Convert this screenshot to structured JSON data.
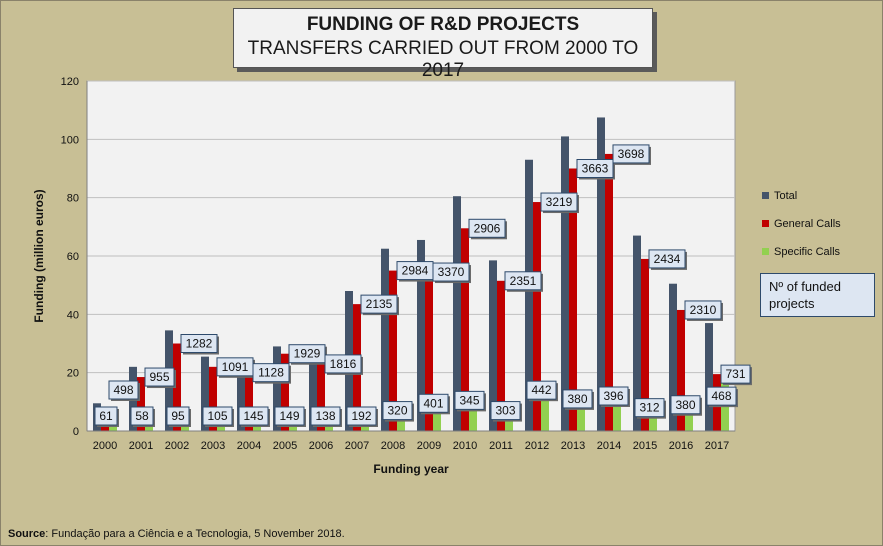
{
  "title": {
    "line1": "FUNDING OF R&D PROJECTS",
    "line2": "TRANSFERS CARRIED OUT FROM 2000 TO 2017"
  },
  "note_box": "Nº of funded projects",
  "source": {
    "label": "Source",
    "text": ": Fundação para a Ciência e a Tecnologia, 5 November 2018."
  },
  "colors": {
    "total": "#44546a",
    "general": "#c00000",
    "specific": "#92d050",
    "plot_bg": "#f2f2f2",
    "page_bg": "#c8bf95"
  },
  "chart_data": {
    "type": "bar",
    "xlabel": "Funding year",
    "ylabel": "Funding (million euros)",
    "ylim": [
      0,
      120
    ],
    "yticks": [
      0,
      20,
      40,
      60,
      80,
      100,
      120
    ],
    "categories": [
      "2000",
      "2001",
      "2002",
      "2003",
      "2004",
      "2005",
      "2006",
      "2007",
      "2008",
      "2009",
      "2010",
      "2011",
      "2012",
      "2013",
      "2014",
      "2015",
      "2016",
      "2017"
    ],
    "series": [
      {
        "name": "Total",
        "values": [
          9.5,
          22,
          34.5,
          25.5,
          22,
          29,
          27,
          48,
          62.5,
          65.5,
          80.5,
          58.5,
          93,
          101,
          107.5,
          67,
          50.5,
          37
        ]
      },
      {
        "name": "General Calls",
        "values": [
          7,
          18.5,
          30,
          22,
          20,
          26.5,
          23,
          43.5,
          55,
          54.5,
          69.5,
          51.5,
          78.5,
          90,
          95,
          59,
          41.5,
          19.5
        ]
      },
      {
        "name": "Specific Calls",
        "values": [
          2.5,
          3,
          4,
          3.5,
          2.5,
          2.5,
          3,
          4,
          7,
          9.5,
          10.5,
          7,
          14,
          11,
          12,
          8,
          9,
          17
        ]
      }
    ],
    "general_projects": [
      498,
      955,
      1282,
      1091,
      1128,
      1929,
      1816,
      2135,
      2984,
      3370,
      2906,
      2351,
      3219,
      3663,
      3698,
      2434,
      2310,
      731
    ],
    "specific_projects": [
      61,
      58,
      95,
      105,
      145,
      149,
      138,
      192,
      320,
      401,
      345,
      303,
      442,
      380,
      396,
      312,
      380,
      468
    ],
    "legend": [
      "Total",
      "General Calls",
      "Specific Calls"
    ],
    "legend_position": "right",
    "grid": true
  }
}
